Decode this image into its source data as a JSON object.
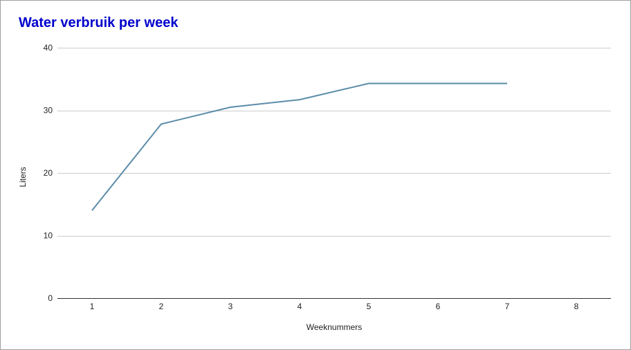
{
  "chart_data": {
    "type": "line",
    "title": "Water verbruik per week",
    "xlabel": "Weeknummers",
    "ylabel": "Liters",
    "x": [
      1,
      2,
      3,
      4,
      5,
      6,
      7
    ],
    "series": [
      {
        "values": [
          14,
          27.8,
          30.5,
          31.7,
          34.3,
          34.3,
          34.3
        ],
        "color": "#5b8ca8"
      }
    ],
    "xticks": [
      1,
      2,
      3,
      4,
      5,
      6,
      7,
      8
    ],
    "yticks": [
      0,
      10,
      20,
      30,
      40
    ],
    "xlim": [
      0.5,
      8.5
    ],
    "ylim": [
      0,
      40
    ],
    "grid": true,
    "title_color": "#0000cc"
  }
}
